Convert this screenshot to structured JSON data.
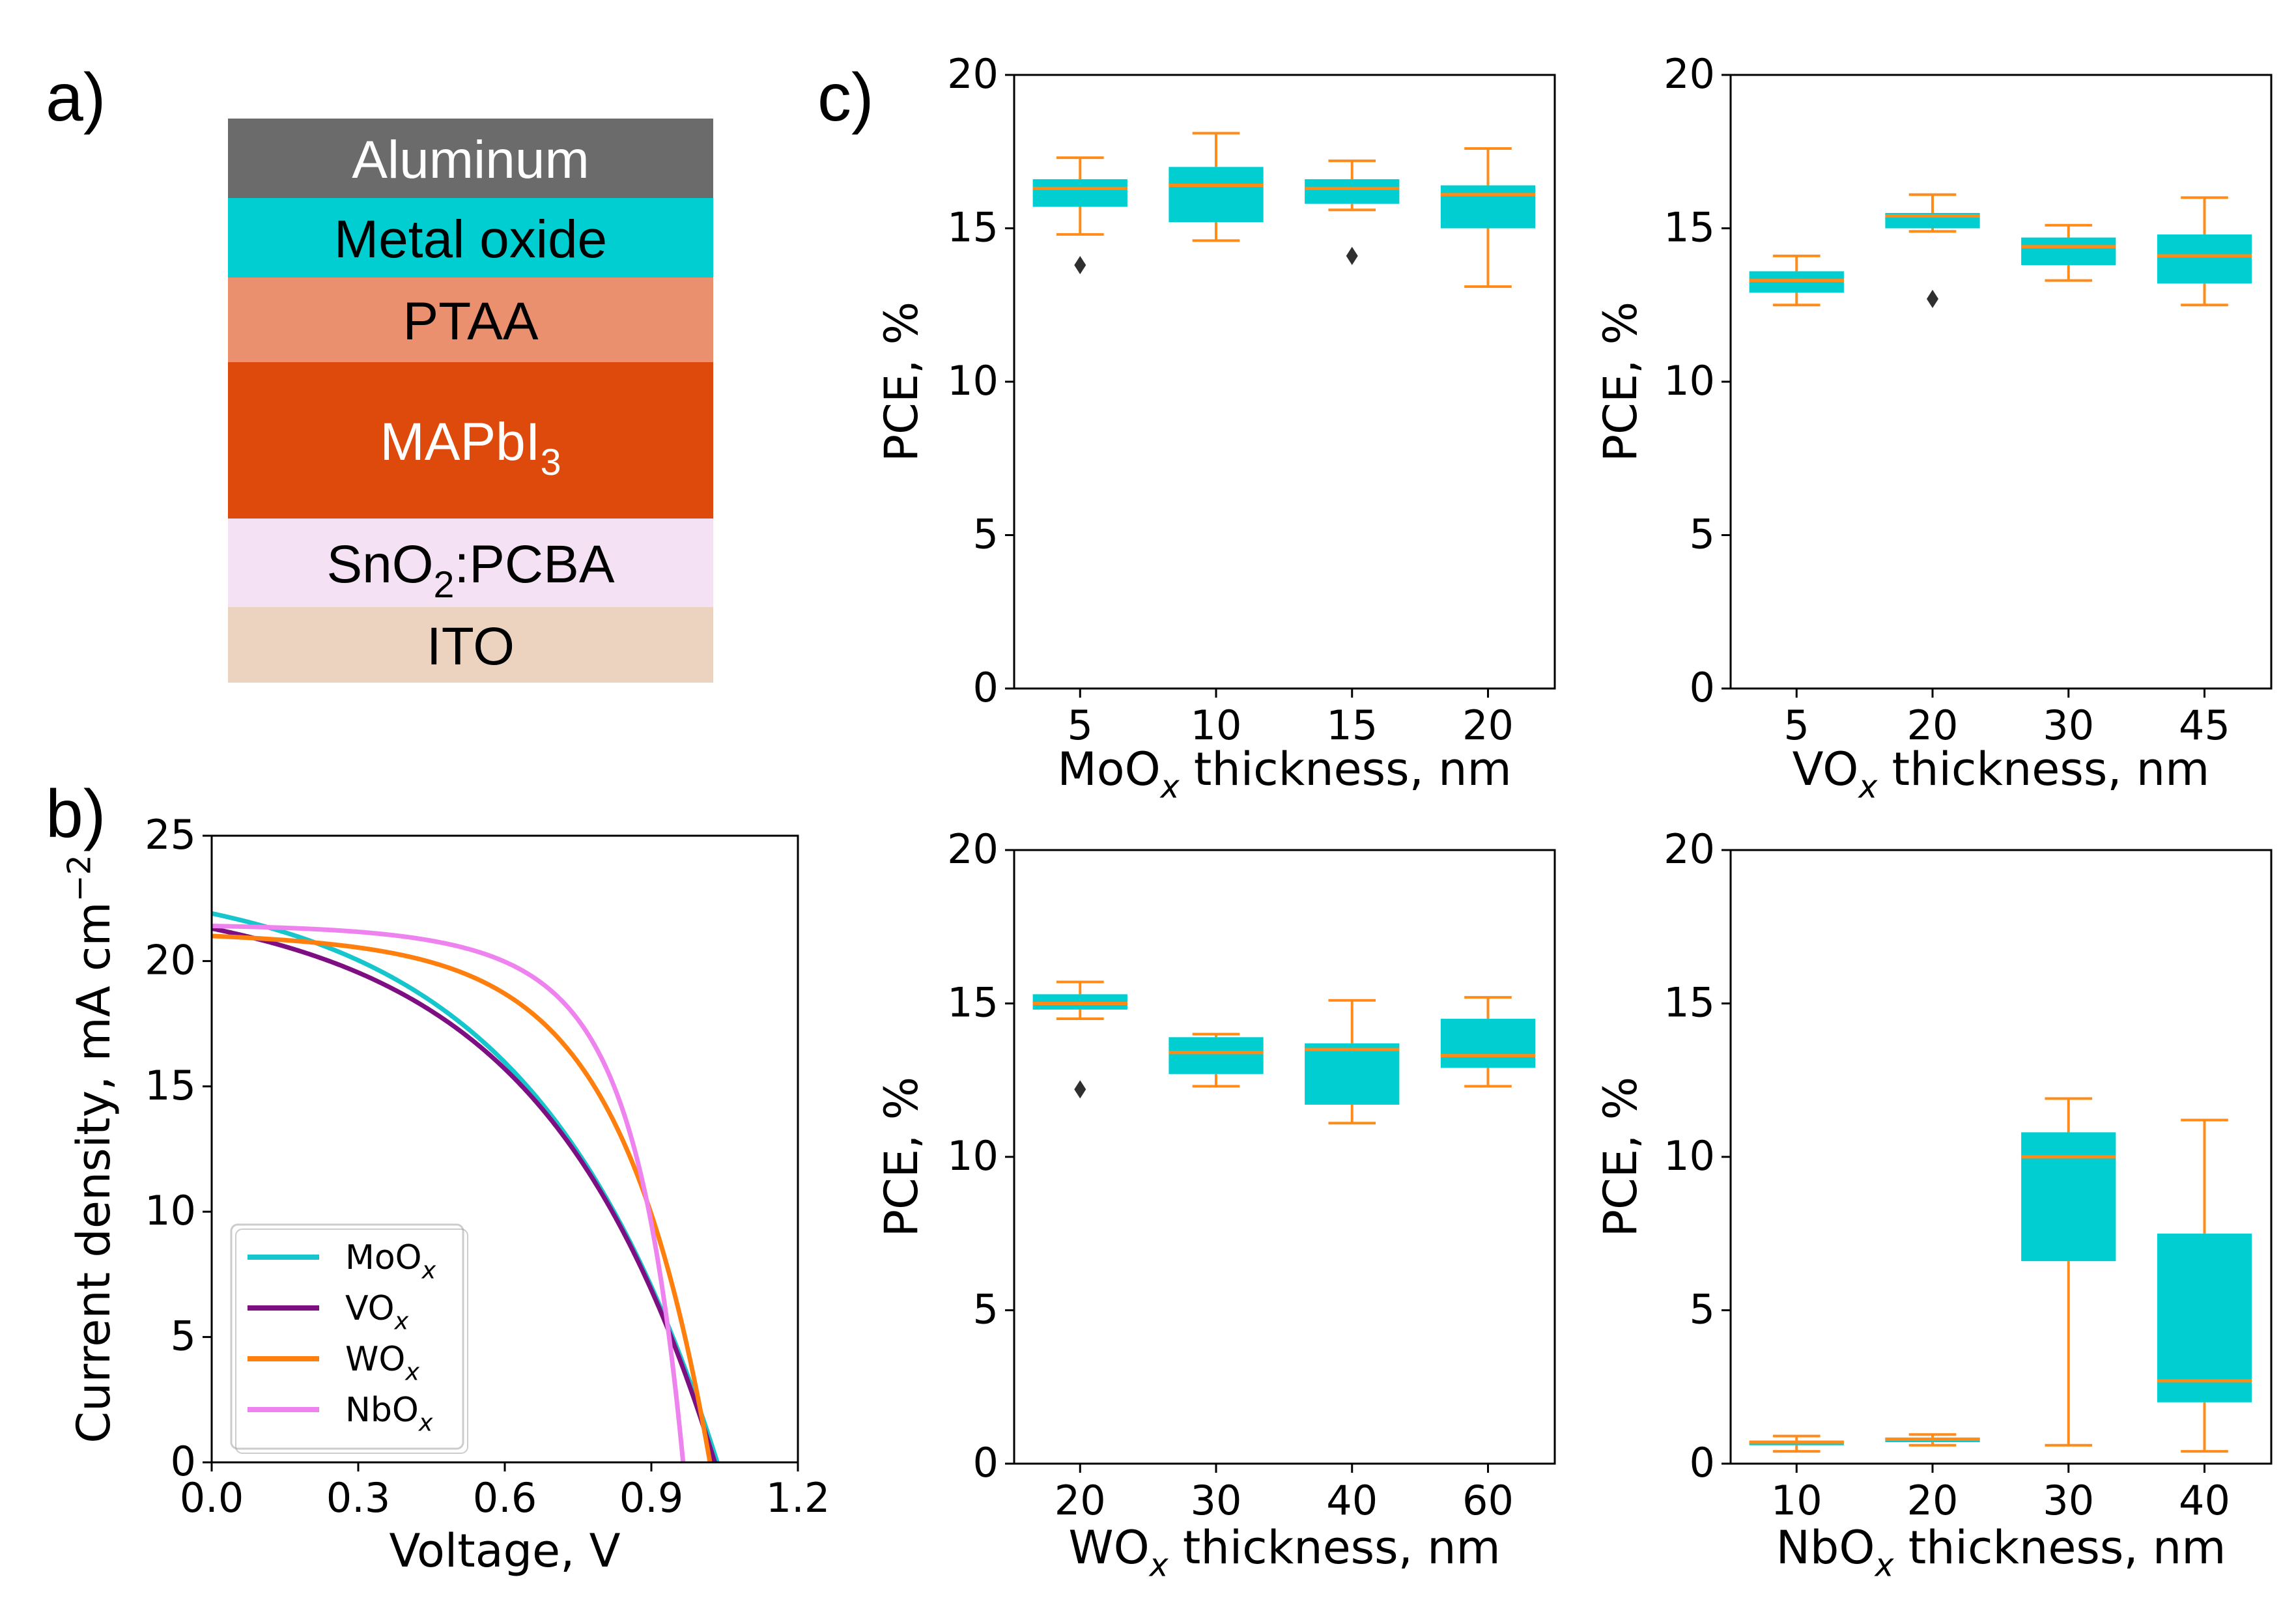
{
  "panel_labels": {
    "a": "a)",
    "b": "b)",
    "c": "c)"
  },
  "colors": {
    "box_fill": "#00CED1",
    "median": "#FF8C1A",
    "whisker": "#FF8C1A",
    "flier": "#2f2f2f",
    "MoOx": "#17C6CC",
    "VOx": "#7E0F83",
    "WOx": "#FF7F0E",
    "NbOx": "#EE82EE"
  },
  "stack": {
    "layers": [
      {
        "name": "Aluminum",
        "color": "#6B6B6B",
        "text_color": "#ffffff"
      },
      {
        "name": "Metal oxide",
        "color": "#00CED1",
        "text_color": "#000000"
      },
      {
        "name": "PTAA",
        "color": "#EB906E",
        "text_color": "#000000"
      },
      {
        "name": "MAPbI",
        "sub": "3",
        "color": "#DD4A0C",
        "text_color": "#ffffff"
      },
      {
        "name": "SnO",
        "sub": "2",
        "after": ":PCBA",
        "color": "#F4E2F4",
        "text_color": "#000000"
      },
      {
        "name": "ITO",
        "color": "#ECD3C0",
        "text_color": "#000000"
      }
    ]
  },
  "chart_data": [
    {
      "id": "jv",
      "type": "line",
      "xlabel": "Voltage, V",
      "ylabel": "Current density, mA cm",
      "ylabel_sup": "−2",
      "xlim": [
        0.0,
        1.2
      ],
      "ylim": [
        0,
        25
      ],
      "xticks": [
        0.0,
        0.3,
        0.6,
        0.9,
        1.2
      ],
      "xtick_labels": [
        "0.0",
        "0.3",
        "0.6",
        "0.9",
        "1.2"
      ],
      "yticks": [
        0,
        5,
        10,
        15,
        20,
        25
      ],
      "ytick_labels": [
        "0",
        "5",
        "10",
        "15",
        "20",
        "25"
      ],
      "legend_position": "lower-left",
      "series": [
        {
          "name": "MoO",
          "sub": "x",
          "color_key": "MoOx",
          "jsc": 21.9,
          "voc": 1.035,
          "slope": 0.22,
          "a": 2.75,
          "n": 1.0
        },
        {
          "name": "VO",
          "sub": "x",
          "color_key": "VOx",
          "jsc": 21.3,
          "voc": 1.03,
          "slope": 0.9,
          "a": 3.0,
          "n": 1.0
        },
        {
          "name": "WO",
          "sub": "x",
          "color_key": "WOx",
          "jsc": 21.0,
          "voc": 1.02,
          "slope": 0.4,
          "a": 5.5,
          "n": 1.0
        },
        {
          "name": "NbO",
          "sub": "x",
          "color_key": "NbOx",
          "jsc": 21.4,
          "voc": 0.965,
          "slope": 0.4,
          "a": 3.2,
          "n": 2.8
        }
      ]
    },
    {
      "id": "moox",
      "type": "box",
      "xlabel": "MoO",
      "xlabel_sub": "x",
      "xlabel_after": " thickness, nm",
      "ylabel": "PCE, %",
      "ylim": [
        0,
        20
      ],
      "yticks": [
        0,
        5,
        10,
        15,
        20
      ],
      "ytick_labels": [
        "0",
        "5",
        "10",
        "15",
        "20"
      ],
      "categories": [
        "5",
        "10",
        "15",
        "20"
      ],
      "boxes": [
        {
          "whislo": 14.8,
          "q1": 15.7,
          "med": 16.3,
          "q3": 16.6,
          "whishi": 17.3,
          "fliers": [
            13.8
          ]
        },
        {
          "whislo": 14.6,
          "q1": 15.2,
          "med": 16.4,
          "q3": 17.0,
          "whishi": 18.1,
          "fliers": []
        },
        {
          "whislo": 15.6,
          "q1": 15.8,
          "med": 16.3,
          "q3": 16.6,
          "whishi": 17.2,
          "fliers": [
            14.1
          ]
        },
        {
          "whislo": 13.1,
          "q1": 15.0,
          "med": 16.1,
          "q3": 16.4,
          "whishi": 17.6,
          "fliers": []
        }
      ]
    },
    {
      "id": "vox",
      "type": "box",
      "xlabel": "VO",
      "xlabel_sub": "x",
      "xlabel_after": " thickness, nm",
      "ylabel": "PCE, %",
      "ylim": [
        0,
        20
      ],
      "yticks": [
        0,
        5,
        10,
        15,
        20
      ],
      "ytick_labels": [
        "0",
        "5",
        "10",
        "15",
        "20"
      ],
      "categories": [
        "5",
        "20",
        "30",
        "45"
      ],
      "boxes": [
        {
          "whislo": 12.5,
          "q1": 12.9,
          "med": 13.3,
          "q3": 13.6,
          "whishi": 14.1,
          "fliers": []
        },
        {
          "whislo": 14.9,
          "q1": 15.0,
          "med": 15.4,
          "q3": 15.5,
          "whishi": 16.1,
          "fliers": [
            12.7
          ]
        },
        {
          "whislo": 13.3,
          "q1": 13.8,
          "med": 14.4,
          "q3": 14.7,
          "whishi": 15.1,
          "fliers": []
        },
        {
          "whislo": 12.5,
          "q1": 13.2,
          "med": 14.1,
          "q3": 14.8,
          "whishi": 16.0,
          "fliers": []
        }
      ]
    },
    {
      "id": "wox",
      "type": "box",
      "xlabel": "WO",
      "xlabel_sub": "x",
      "xlabel_after": " thickness, nm",
      "ylabel": "PCE, %",
      "ylim": [
        0,
        20
      ],
      "yticks": [
        0,
        5,
        10,
        15,
        20
      ],
      "ytick_labels": [
        "0",
        "5",
        "10",
        "15",
        "20"
      ],
      "categories": [
        "20",
        "30",
        "40",
        "60"
      ],
      "boxes": [
        {
          "whislo": 14.5,
          "q1": 14.8,
          "med": 15.0,
          "q3": 15.3,
          "whishi": 15.7,
          "fliers": [
            12.2
          ]
        },
        {
          "whislo": 12.3,
          "q1": 12.7,
          "med": 13.4,
          "q3": 13.9,
          "whishi": 14.0,
          "fliers": []
        },
        {
          "whislo": 11.1,
          "q1": 11.7,
          "med": 13.5,
          "q3": 13.7,
          "whishi": 15.1,
          "fliers": []
        },
        {
          "whislo": 12.3,
          "q1": 12.9,
          "med": 13.3,
          "q3": 14.5,
          "whishi": 15.2,
          "fliers": []
        }
      ]
    },
    {
      "id": "nbox",
      "type": "box",
      "xlabel": "NbO",
      "xlabel_sub": "x",
      "xlabel_after": " thickness, nm",
      "ylabel": "PCE, %",
      "ylim": [
        0,
        20
      ],
      "yticks": [
        0,
        5,
        10,
        15,
        20
      ],
      "ytick_labels": [
        "0",
        "5",
        "10",
        "15",
        "20"
      ],
      "categories": [
        "10",
        "20",
        "30",
        "40"
      ],
      "boxes": [
        {
          "whislo": 0.4,
          "q1": 0.6,
          "med": 0.7,
          "q3": 0.7,
          "whishi": 0.9,
          "fliers": []
        },
        {
          "whislo": 0.6,
          "q1": 0.7,
          "med": 0.8,
          "q3": 0.85,
          "whishi": 0.95,
          "fliers": []
        },
        {
          "whislo": 0.6,
          "q1": 6.6,
          "med": 10.0,
          "q3": 10.8,
          "whishi": 11.9,
          "fliers": []
        },
        {
          "whislo": 0.4,
          "q1": 2.0,
          "med": 2.7,
          "q3": 7.5,
          "whishi": 11.2,
          "fliers": []
        }
      ]
    }
  ]
}
